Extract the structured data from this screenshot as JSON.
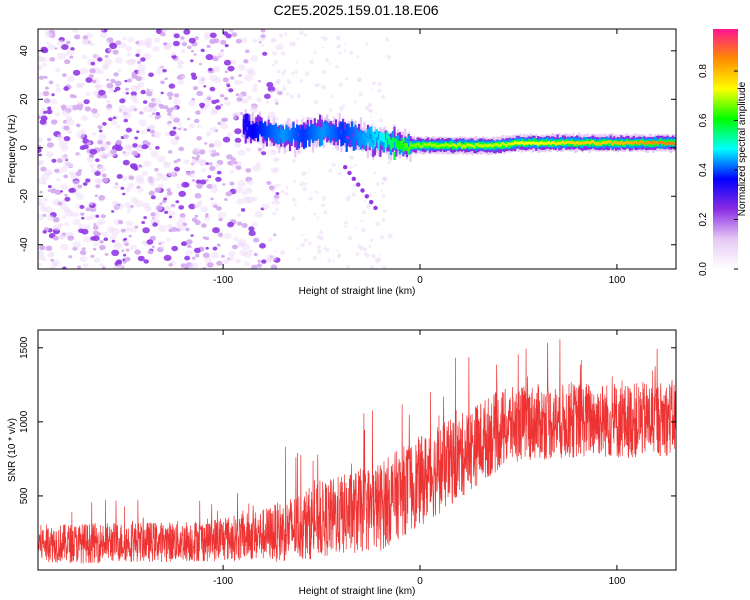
{
  "title": "C2E5.2025.159.01.18.E06",
  "chart_data": [
    {
      "type": "heatmap",
      "description_free": true,
      "xlabel": "Height of straight line (km)",
      "ylabel": "Frequency (Hz)",
      "xlim": [
        -194,
        130
      ],
      "ylim": [
        -50,
        49
      ],
      "xticks": [
        -100,
        0,
        100
      ],
      "yticks": [
        -40,
        -20,
        0,
        20,
        40
      ],
      "colorbar": {
        "label": "Normalized spectral amplitude",
        "range": [
          0.0,
          0.97
        ],
        "ticks": [
          0.0,
          0.2,
          0.4,
          0.6,
          0.8
        ],
        "colors": [
          "#ffffff",
          "#e6c8f5",
          "#8a2be2",
          "#0000ff",
          "#00ffff",
          "#00ff00",
          "#ffff00",
          "#ff8c00",
          "#ff1493"
        ]
      },
      "noise_region_x": [
        -194,
        -70
      ],
      "signal_track": {
        "x": [
          -90,
          -80,
          -70,
          -60,
          -50,
          -40,
          -30,
          -20,
          -10,
          0,
          10,
          20,
          30,
          40,
          50,
          60,
          70,
          80,
          90,
          100,
          110,
          120,
          130
        ],
        "center_hz": [
          9,
          7,
          5,
          5,
          7,
          6,
          4,
          3,
          1,
          1,
          1,
          1,
          1,
          1,
          2,
          2,
          2,
          2,
          2,
          2,
          2,
          2,
          2
        ],
        "amplitude": [
          0.35,
          0.4,
          0.45,
          0.4,
          0.45,
          0.4,
          0.45,
          0.5,
          0.65,
          0.7,
          0.7,
          0.72,
          0.72,
          0.72,
          0.75,
          0.75,
          0.78,
          0.8,
          0.8,
          0.82,
          0.85,
          0.88,
          0.9
        ]
      }
    },
    {
      "type": "line",
      "xlabel": "Height of straight line (km)",
      "ylabel": "SNR (10 * v/v)",
      "xlim": [
        -194,
        130
      ],
      "ylim": [
        0,
        1620
      ],
      "xticks": [
        -100,
        0,
        100
      ],
      "yticks": [
        500,
        1000,
        1500
      ],
      "color": "#ee3333",
      "series": [
        {
          "x": [
            -194,
            -170,
            -150,
            -130,
            -110,
            -90,
            -80,
            -70,
            -60,
            -50,
            -40,
            -30,
            -20,
            -10,
            0,
            10,
            20,
            30,
            40,
            50,
            60,
            70,
            80,
            90,
            100,
            110,
            120,
            130
          ],
          "mean": [
            180,
            180,
            190,
            190,
            200,
            220,
            240,
            260,
            300,
            340,
            370,
            400,
            430,
            520,
            600,
            680,
            760,
            860,
            940,
            990,
            1000,
            1000,
            1010,
            1020,
            1000,
            1010,
            1020,
            1030
          ],
          "spread": [
            160,
            170,
            170,
            170,
            180,
            200,
            220,
            260,
            300,
            320,
            340,
            360,
            380,
            380,
            380,
            380,
            360,
            350,
            340,
            320,
            320,
            320,
            320,
            320,
            320,
            320,
            320,
            320
          ]
        }
      ]
    }
  ]
}
